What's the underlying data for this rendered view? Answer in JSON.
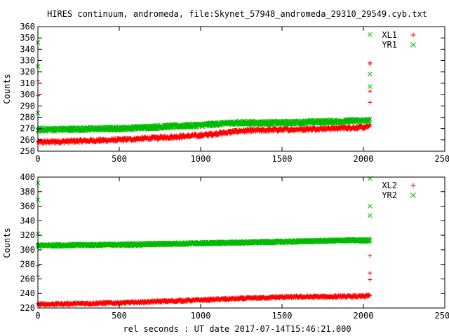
{
  "chart_data": [
    {
      "type": "scatter",
      "title": "HIRES continuum, andromeda, file:Skynet_57948_andromeda_29310_29549.cyb.txt",
      "xlabel": "",
      "ylabel": "Counts",
      "xlim": [
        0,
        2500
      ],
      "ylim": [
        250,
        360
      ],
      "x_ticks": [
        0,
        500,
        1000,
        1500,
        2000,
        2500
      ],
      "y_ticks": [
        250,
        260,
        270,
        280,
        290,
        300,
        310,
        320,
        330,
        340,
        350,
        360
      ],
      "legend_position": "top-right",
      "grid": false,
      "series": [
        {
          "name": "XL1",
          "marker": "plus",
          "color": "#ff0000",
          "trend": [
            [
              0,
              258
            ],
            [
              500,
              260
            ],
            [
              1000,
              264
            ],
            [
              1250,
              268
            ],
            [
              1500,
              269
            ],
            [
              2000,
              271
            ],
            [
              2040,
              272
            ]
          ],
          "outliers": [
            [
              0,
              312
            ],
            [
              0,
              299
            ],
            [
              2040,
              328
            ],
            [
              2040,
              303
            ],
            [
              2040,
              293
            ],
            [
              2040,
              327
            ]
          ]
        },
        {
          "name": "YR1",
          "marker": "cross",
          "color": "#00bb00",
          "trend": [
            [
              0,
              269
            ],
            [
              500,
              270
            ],
            [
              1000,
              273
            ],
            [
              1200,
              275
            ],
            [
              1500,
              275
            ],
            [
              2000,
              277
            ],
            [
              2040,
              277
            ]
          ],
          "outliers": [
            [
              0,
              346
            ],
            [
              0,
              325
            ],
            [
              0,
              284
            ],
            [
              2040,
              353
            ],
            [
              2040,
              318
            ],
            [
              2040,
              307
            ]
          ]
        }
      ]
    },
    {
      "type": "scatter",
      "title": "",
      "xlabel": "rel seconds : UT date 2017-07-14T15:46:21.000",
      "ylabel": "Counts",
      "xlim": [
        0,
        2500
      ],
      "ylim": [
        220,
        400
      ],
      "x_ticks": [
        0,
        500,
        1000,
        1500,
        2000,
        2500
      ],
      "y_ticks": [
        220,
        240,
        260,
        280,
        300,
        320,
        340,
        360,
        380,
        400
      ],
      "legend_position": "top-right",
      "grid": false,
      "series": [
        {
          "name": "XL2",
          "marker": "plus",
          "color": "#ff0000",
          "trend": [
            [
              0,
              225
            ],
            [
              500,
              227
            ],
            [
              1000,
              231
            ],
            [
              1500,
              235
            ],
            [
              2000,
              236
            ],
            [
              2040,
              237
            ]
          ],
          "outliers": [
            [
              0,
              278
            ],
            [
              0,
              264
            ],
            [
              2040,
              292
            ],
            [
              2040,
              268
            ],
            [
              2040,
              259
            ]
          ]
        },
        {
          "name": "YR2",
          "marker": "cross",
          "color": "#00bb00",
          "trend": [
            [
              0,
              306
            ],
            [
              500,
              307
            ],
            [
              1000,
              309
            ],
            [
              1500,
              311
            ],
            [
              1900,
              313
            ],
            [
              2040,
              313
            ]
          ],
          "outliers": [
            [
              0,
              392
            ],
            [
              0,
              369
            ],
            [
              0,
              322
            ],
            [
              2040,
              398
            ],
            [
              2040,
              360
            ],
            [
              2040,
              347
            ]
          ]
        }
      ]
    }
  ]
}
